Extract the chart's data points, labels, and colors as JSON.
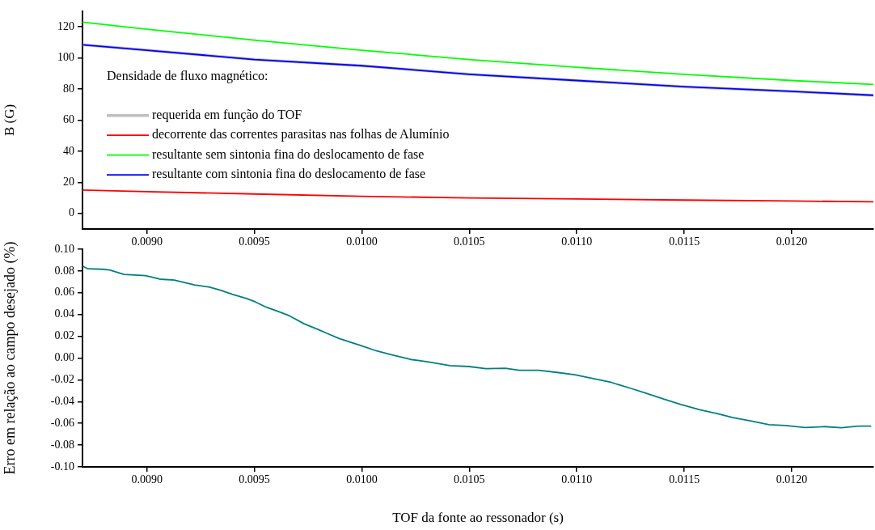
{
  "chart_data": [
    {
      "type": "line",
      "ylabel": "B (G)",
      "legend_title": "Densidade de fluxo magnético:",
      "legend": "left",
      "marker": "none",
      "line_style": "solid",
      "x": [
        0.0087,
        0.009,
        0.0095,
        0.01,
        0.0105,
        0.011,
        0.0115,
        0.012,
        0.01238
      ],
      "series": [
        {
          "name": "requerida em função do TOF",
          "color": "#c0c0c0",
          "values": [
            108.5,
            105,
            99,
            95,
            89.5,
            85.5,
            81.5,
            78.5,
            76
          ]
        },
        {
          "name": "decorrente das correntes parasitas nas folhas de Alumínio",
          "color": "#ff0000",
          "values": [
            15,
            14,
            12.5,
            11,
            10,
            9.3,
            8.6,
            8,
            7.5
          ]
        },
        {
          "name": "resultante sem sintonia fina do deslocamento de fase",
          "color": "#00ff00",
          "values": [
            123,
            118.5,
            111.5,
            105,
            99,
            94,
            89.5,
            85.5,
            83
          ]
        },
        {
          "name": "resultante com sintonia fina do deslocamento de fase",
          "color": "#0000ff",
          "values": [
            108.5,
            105,
            99,
            95,
            89.5,
            85.5,
            81.5,
            78.5,
            76
          ]
        }
      ],
      "xlim": [
        0.0087,
        0.01238
      ],
      "xticks": [
        {
          "value": 0.009,
          "label": "0.0090"
        },
        {
          "value": 0.0095,
          "label": "0.0095"
        },
        {
          "value": 0.01,
          "label": "0.0100"
        },
        {
          "value": 0.0105,
          "label": "0.0105"
        },
        {
          "value": 0.011,
          "label": "0.0110"
        },
        {
          "value": 0.0115,
          "label": "0.0115"
        },
        {
          "value": 0.012,
          "label": "0.0120"
        }
      ],
      "ylim": [
        -10,
        130
      ],
      "yticks": [
        0,
        20,
        40,
        60,
        80,
        100,
        120
      ]
    },
    {
      "type": "line",
      "xlabel": "TOF da fonte ao ressonador (s)",
      "ylabel": "Erro em relação ao campo desejado (%)",
      "marker": "none",
      "line_style": "solid",
      "x": [
        0.0087,
        0.008725,
        0.008792,
        0.008826,
        0.008893,
        0.008993,
        0.00906,
        0.009127,
        0.009221,
        0.009288,
        0.009342,
        0.009396,
        0.009463,
        0.009503,
        0.009556,
        0.009623,
        0.009664,
        0.009731,
        0.009798,
        0.009838,
        0.009892,
        0.009932,
        0.009999,
        0.010066,
        0.010133,
        0.010227,
        0.01028,
        0.010334,
        0.01041,
        0.0105,
        0.010577,
        0.010668,
        0.010732,
        0.010823,
        0.0109,
        0.010991,
        0.011081,
        0.011159,
        0.011249,
        0.011327,
        0.011404,
        0.011481,
        0.011572,
        0.011649,
        0.011727,
        0.011817,
        0.011895,
        0.011972,
        0.012063,
        0.012153,
        0.012231,
        0.012308,
        0.01237
      ],
      "series": [
        {
          "color": "#008080",
          "values": [
            0.0845,
            0.082,
            0.0816,
            0.081,
            0.0768,
            0.0757,
            0.0725,
            0.0717,
            0.0672,
            0.0653,
            0.0624,
            0.0587,
            0.0547,
            0.0517,
            0.0467,
            0.0419,
            0.0387,
            0.0315,
            0.0261,
            0.0227,
            0.0181,
            0.0155,
            0.0112,
            0.0067,
            0.0032,
            -0.0013,
            -0.0027,
            -0.0043,
            -0.0069,
            -0.0078,
            -0.0097,
            -0.0094,
            -0.0112,
            -0.0112,
            -0.013,
            -0.0153,
            -0.019,
            -0.0223,
            -0.0277,
            -0.0326,
            -0.0377,
            -0.0424,
            -0.0475,
            -0.0509,
            -0.0548,
            -0.0581,
            -0.0612,
            -0.062,
            -0.0638,
            -0.063,
            -0.064,
            -0.0625,
            -0.0625
          ]
        }
      ],
      "xlim": [
        0.0087,
        0.01238
      ],
      "xticks": [
        {
          "value": 0.009,
          "label": "0.0090"
        },
        {
          "value": 0.0095,
          "label": "0.0095"
        },
        {
          "value": 0.01,
          "label": "0.0100"
        },
        {
          "value": 0.0105,
          "label": "0.0105"
        },
        {
          "value": 0.011,
          "label": "0.0110"
        },
        {
          "value": 0.0115,
          "label": "0.0115"
        },
        {
          "value": 0.012,
          "label": "0.0120"
        }
      ],
      "ylim": [
        -0.1,
        0.1
      ],
      "yticks": [
        {
          "value": -0.1,
          "label": "-0.10"
        },
        {
          "value": -0.08,
          "label": "-0.08"
        },
        {
          "value": -0.06,
          "label": "-0.06"
        },
        {
          "value": -0.04,
          "label": "-0.04"
        },
        {
          "value": -0.02,
          "label": "-0.02"
        },
        {
          "value": 0,
          "label": "0.00"
        },
        {
          "value": 0.02,
          "label": "0.02"
        },
        {
          "value": 0.04,
          "label": "0.04"
        },
        {
          "value": 0.06,
          "label": "0.06"
        },
        {
          "value": 0.08,
          "label": "0.08"
        },
        {
          "value": 0.1,
          "label": "0.10"
        }
      ]
    }
  ]
}
